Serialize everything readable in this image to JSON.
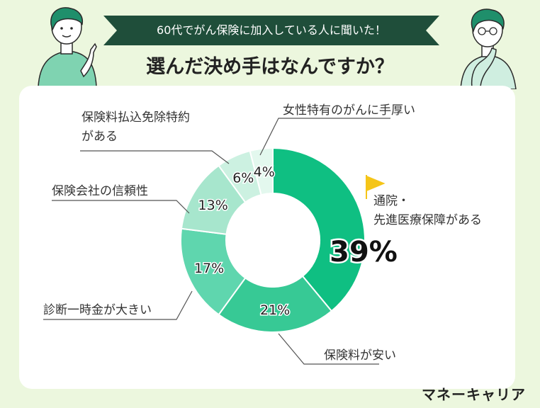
{
  "banner": "60代でがん保険に加入している人に聞いた！",
  "title": "選んだ決め手はなんですか？",
  "brand": "マネーキャリア",
  "chart_data": {
    "type": "pie",
    "donut": true,
    "slices": [
      {
        "label": "通院・\n先進医療保障がある",
        "value": 39,
        "value_label": "39%",
        "color": "#0fbf82"
      },
      {
        "label": "保険料が安い",
        "value": 21,
        "value_label": "21%",
        "color": "#37c995"
      },
      {
        "label": "診断一時金が大きい",
        "value": 17,
        "value_label": "17%",
        "color": "#5fd6ae"
      },
      {
        "label": "保険会社の信頼性",
        "value": 13,
        "value_label": "13%",
        "color": "#a7e6cd"
      },
      {
        "label": "保険料払込免除特約\nがある",
        "value": 6,
        "value_label": "6%",
        "color": "#ccf1e1"
      },
      {
        "label": "女性特有のがんに手厚い",
        "value": 4,
        "value_label": "4%",
        "color": "#e3f8ee"
      }
    ],
    "highlight_color": "#f5c518"
  }
}
